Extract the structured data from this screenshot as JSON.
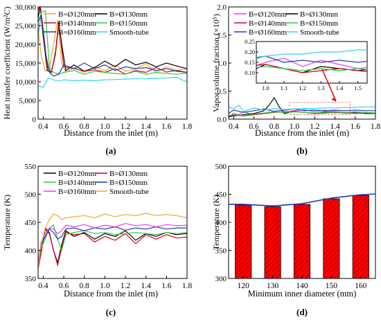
{
  "chart_data": [
    {
      "panel_label": "(a)",
      "type": "line",
      "xlabel": "Distance from the inlet (m)",
      "ylabel": "Heat transfer coefficient (W/m²C)",
      "xlim": [
        0.35,
        1.8
      ],
      "ylim": [
        0,
        30000
      ],
      "xticks": [
        "0.4",
        "0.6",
        "0.8",
        "1.0",
        "1.2",
        "1.4",
        "1.6",
        "1.8"
      ],
      "yticks": [
        "0",
        "5,000",
        "10,000",
        "15,000",
        "20,000",
        "25,000",
        "30,000"
      ],
      "legend_position": "top",
      "series": [
        {
          "name": "B=Ø120mm",
          "color": "#f5a623",
          "x": [
            0.35,
            0.38,
            0.42,
            0.46,
            0.5,
            0.54,
            0.58,
            0.62,
            0.7,
            0.8,
            0.9,
            1.0,
            1.1,
            1.2,
            1.3,
            1.4,
            1.5,
            1.6,
            1.7,
            1.8
          ],
          "y": [
            24000,
            17000,
            12800,
            13500,
            20000,
            26500,
            15000,
            12500,
            13800,
            12500,
            14000,
            13000,
            14500,
            12800,
            13500,
            14800,
            12500,
            14000,
            13000,
            13500
          ]
        },
        {
          "name": "B=Ø130mm",
          "color": "#000000",
          "x": [
            0.35,
            0.37,
            0.4,
            0.44,
            0.48,
            0.52,
            0.55,
            0.58,
            0.62,
            0.7,
            0.8,
            0.9,
            1.0,
            1.1,
            1.2,
            1.3,
            1.4,
            1.5,
            1.6,
            1.7,
            1.8
          ],
          "y": [
            27000,
            30000,
            22000,
            13000,
            12500,
            18000,
            26000,
            20000,
            13000,
            14500,
            12800,
            13800,
            15500,
            14000,
            16000,
            14500,
            15200,
            14000,
            15000,
            14200,
            13500
          ]
        },
        {
          "name": "B=Ø140mm",
          "color": "#d0021b",
          "x": [
            0.35,
            0.37,
            0.4,
            0.44,
            0.48,
            0.52,
            0.55,
            0.6,
            0.7,
            0.8,
            0.9,
            1.0,
            1.1,
            1.2,
            1.3,
            1.4,
            1.5,
            1.6,
            1.7,
            1.8
          ],
          "y": [
            29000,
            30500,
            24000,
            14000,
            12500,
            17500,
            25500,
            14000,
            13500,
            12800,
            13200,
            12500,
            13500,
            12000,
            13000,
            12500,
            13800,
            12600,
            13000,
            12500
          ]
        },
        {
          "name": "B=Ø150mm",
          "color": "#2ecc40",
          "x": [
            0.35,
            0.38,
            0.42,
            0.46,
            0.5,
            0.55,
            0.6,
            0.7,
            0.8,
            0.9,
            1.0,
            1.1,
            1.2,
            1.3,
            1.4,
            1.5,
            1.6,
            1.7,
            1.8
          ],
          "y": [
            22000,
            28500,
            29000,
            14000,
            12500,
            12000,
            12500,
            13000,
            12000,
            12800,
            12500,
            12200,
            12000,
            12800,
            12000,
            12500,
            12200,
            12000,
            12300
          ]
        },
        {
          "name": "B=Ø160mm",
          "color": "#1f3bb3",
          "x": [
            0.35,
            0.38,
            0.42,
            0.46,
            0.5,
            0.55,
            0.6,
            0.7,
            0.8,
            0.9,
            1.0,
            1.1,
            1.2,
            1.3,
            1.4,
            1.5,
            1.6,
            1.7,
            1.8
          ],
          "y": [
            26000,
            28000,
            18000,
            12500,
            11500,
            12000,
            14500,
            13500,
            15000,
            13500,
            14500,
            13000,
            14000,
            13500,
            13800,
            13000,
            13500,
            12800,
            12500
          ]
        },
        {
          "name": "Smooth-tube",
          "color": "#33d6e6",
          "x": [
            0.35,
            0.4,
            0.45,
            0.5,
            0.55,
            0.6,
            0.7,
            0.8,
            0.9,
            1.0,
            1.1,
            1.2,
            1.3,
            1.4,
            1.5,
            1.6,
            1.7,
            1.75,
            1.8
          ],
          "y": [
            8800,
            8500,
            11000,
            10500,
            10200,
            10500,
            10300,
            10400,
            10300,
            10500,
            10600,
            10700,
            10800,
            10800,
            10900,
            11000,
            11200,
            10500,
            10000
          ]
        }
      ]
    },
    {
      "panel_label": "(b)",
      "type": "line",
      "xlabel": "Distance from the inlet (m)",
      "ylabel": "Vapor volume fraction (×10⁵)",
      "xlim": [
        0.35,
        1.8
      ],
      "ylim": [
        0,
        2.0
      ],
      "xticks": [
        "0.4",
        "0.6",
        "0.8",
        "1.0",
        "1.2",
        "1.4",
        "1.6",
        "1.8"
      ],
      "yticks": [
        "0.0",
        "0.5",
        "1.0",
        "1.5",
        "2.0"
      ],
      "legend_position": "top",
      "inset": {
        "xlim": [
          0.95,
          1.55
        ],
        "ylim": [
          0.05,
          0.25
        ],
        "xticks": [
          "1.0",
          "1.1",
          "1.2",
          "1.3",
          "1.4",
          "1.5"
        ],
        "yticks": [
          "0.10",
          "0.15",
          "0.20",
          "0.25"
        ]
      },
      "series": [
        {
          "name": "B=Ø120mm",
          "color": "#e040fb",
          "x": [
            0.35,
            0.4,
            0.45,
            0.5,
            0.55,
            0.6,
            0.7,
            0.8,
            0.9,
            1.0,
            1.1,
            1.2,
            1.3,
            1.4,
            1.5,
            1.6,
            1.7,
            1.8
          ],
          "y": [
            0.05,
            0.1,
            0.08,
            0.14,
            0.1,
            0.08,
            0.1,
            0.13,
            0.12,
            0.15,
            0.17,
            0.13,
            0.16,
            0.14,
            0.12,
            0.13,
            0.12,
            0.11
          ]
        },
        {
          "name": "B=Ø130mm",
          "color": "#000000",
          "x": [
            0.35,
            0.4,
            0.5,
            0.6,
            0.7,
            0.75,
            0.8,
            0.85,
            0.9,
            1.0,
            1.1,
            1.2,
            1.3,
            1.4,
            1.5,
            1.6,
            1.7,
            1.8
          ],
          "y": [
            0.04,
            0.06,
            0.08,
            0.1,
            0.15,
            0.25,
            0.38,
            0.22,
            0.1,
            0.14,
            0.12,
            0.1,
            0.13,
            0.12,
            0.11,
            0.12,
            0.1,
            0.1
          ]
        },
        {
          "name": "B=Ø140mm",
          "color": "#d0021b",
          "x": [
            0.35,
            0.4,
            0.5,
            0.6,
            0.7,
            0.8,
            0.9,
            1.0,
            1.1,
            1.2,
            1.3,
            1.4,
            1.5,
            1.6,
            1.7,
            1.8
          ],
          "y": [
            0.05,
            0.07,
            0.06,
            0.08,
            0.1,
            0.12,
            0.13,
            0.14,
            0.12,
            0.1,
            0.11,
            0.12,
            0.11,
            0.1,
            0.11,
            0.1
          ]
        },
        {
          "name": "B=Ø150mm",
          "color": "#2ecc40",
          "x": [
            0.35,
            0.4,
            0.5,
            0.6,
            0.7,
            0.8,
            0.9,
            1.0,
            1.1,
            1.2,
            1.3,
            1.4,
            1.5,
            1.6,
            1.7,
            1.8
          ],
          "y": [
            0.06,
            0.08,
            0.07,
            0.09,
            0.11,
            0.13,
            0.12,
            0.13,
            0.12,
            0.11,
            0.12,
            0.11,
            0.12,
            0.11,
            0.12,
            0.11
          ]
        },
        {
          "name": "B=Ø160mm",
          "color": "#1f3bb3",
          "x": [
            0.35,
            0.4,
            0.5,
            0.6,
            0.7,
            0.8,
            0.9,
            1.0,
            1.1,
            1.2,
            1.3,
            1.4,
            1.5,
            1.6,
            1.7,
            1.8
          ],
          "y": [
            0.1,
            0.16,
            0.12,
            0.15,
            0.18,
            0.14,
            0.16,
            0.18,
            0.15,
            0.16,
            0.15,
            0.16,
            0.15,
            0.16,
            0.15,
            0.15
          ]
        },
        {
          "name": "Smooth-tube",
          "color": "#33d6e6",
          "x": [
            0.35,
            0.4,
            0.45,
            0.5,
            0.6,
            0.7,
            0.8,
            0.9,
            1.0,
            1.1,
            1.2,
            1.3,
            1.4,
            1.5,
            1.6,
            1.7,
            1.8
          ],
          "y": [
            0.22,
            0.18,
            0.25,
            0.14,
            0.2,
            0.16,
            0.19,
            0.17,
            0.18,
            0.19,
            0.19,
            0.2,
            0.2,
            0.21,
            0.21,
            0.22,
            0.22
          ]
        }
      ]
    },
    {
      "panel_label": "(c)",
      "type": "line",
      "xlabel": "Distance from the inlet (m)",
      "ylabel": "Temperature (K)",
      "xlim": [
        0.35,
        1.8
      ],
      "ylim": [
        350,
        550
      ],
      "xticks": [
        "0.4",
        "0.6",
        "0.8",
        "1.0",
        "1.2",
        "1.4",
        "1.6",
        "1.8"
      ],
      "yticks": [
        "350",
        "400",
        "450",
        "500",
        "550"
      ],
      "legend_position": "top",
      "series": [
        {
          "name": "B=Ø120mm",
          "color": "#000000",
          "x": [
            0.35,
            0.38,
            0.42,
            0.46,
            0.5,
            0.54,
            0.58,
            0.62,
            0.7,
            0.8,
            0.9,
            1.0,
            1.1,
            1.2,
            1.3,
            1.4,
            1.5,
            1.6,
            1.7,
            1.8
          ],
          "y": [
            370,
            400,
            438,
            430,
            400,
            378,
            410,
            435,
            425,
            432,
            420,
            430,
            425,
            435,
            418,
            430,
            425,
            432,
            428,
            430
          ]
        },
        {
          "name": "B=Ø130mm",
          "color": "#d0021b",
          "x": [
            0.35,
            0.38,
            0.42,
            0.46,
            0.5,
            0.54,
            0.58,
            0.62,
            0.7,
            0.8,
            0.9,
            1.0,
            1.1,
            1.2,
            1.3,
            1.4,
            1.5,
            1.6,
            1.7,
            1.8
          ],
          "y": [
            368,
            395,
            440,
            432,
            400,
            374,
            405,
            432,
            428,
            430,
            415,
            425,
            418,
            430,
            412,
            428,
            420,
            428,
            422,
            424
          ]
        },
        {
          "name": "B=Ø140mm",
          "color": "#2ecc40",
          "x": [
            0.35,
            0.38,
            0.42,
            0.46,
            0.5,
            0.54,
            0.58,
            0.62,
            0.7,
            0.8,
            0.9,
            1.0,
            1.1,
            1.2,
            1.3,
            1.4,
            1.5,
            1.6,
            1.7,
            1.8
          ],
          "y": [
            372,
            405,
            420,
            440,
            445,
            420,
            400,
            428,
            432,
            435,
            430,
            432,
            428,
            430,
            432,
            430,
            428,
            432,
            430,
            432
          ]
        },
        {
          "name": "B=Ø150mm",
          "color": "#1f3bb3",
          "x": [
            0.35,
            0.38,
            0.42,
            0.46,
            0.5,
            0.54,
            0.58,
            0.62,
            0.7,
            0.8,
            0.9,
            1.0,
            1.1,
            1.2,
            1.3,
            1.4,
            1.5,
            1.6,
            1.7,
            1.8
          ],
          "y": [
            375,
            410,
            425,
            438,
            432,
            420,
            425,
            438,
            440,
            435,
            440,
            438,
            442,
            436,
            440,
            438,
            442,
            438,
            440,
            440
          ]
        },
        {
          "name": "B=Ø160mm",
          "color": "#e040fb",
          "x": [
            0.35,
            0.38,
            0.42,
            0.46,
            0.5,
            0.54,
            0.58,
            0.62,
            0.7,
            0.8,
            0.9,
            1.0,
            1.1,
            1.2,
            1.3,
            1.4,
            1.5,
            1.6,
            1.7,
            1.8
          ],
          "y": [
            378,
            415,
            430,
            440,
            438,
            430,
            435,
            445,
            442,
            446,
            440,
            445,
            442,
            448,
            444,
            446,
            442,
            446,
            444,
            445
          ]
        },
        {
          "name": "Smooth-tube",
          "color": "#f5a623",
          "x": [
            0.35,
            0.38,
            0.42,
            0.46,
            0.5,
            0.54,
            0.58,
            0.62,
            0.7,
            0.8,
            0.9,
            1.0,
            1.1,
            1.2,
            1.3,
            1.4,
            1.5,
            1.6,
            1.7,
            1.8
          ],
          "y": [
            372,
            410,
            440,
            455,
            465,
            462,
            455,
            458,
            460,
            462,
            458,
            465,
            460,
            464,
            462,
            466,
            462,
            464,
            462,
            458
          ]
        }
      ]
    },
    {
      "panel_label": "(d)",
      "type": "bar",
      "xlabel": "Minimum inner diameter (mm)",
      "ylabel": "Temperature (K)",
      "ylim": [
        300,
        500
      ],
      "yticks": [
        "300",
        "350",
        "400",
        "450",
        "500"
      ],
      "categories": [
        "120",
        "130",
        "140",
        "150",
        "160"
      ],
      "values": [
        431,
        428,
        432,
        442,
        448
      ],
      "bar_color": "#ff0000",
      "hatch": "diagonal",
      "trend_line_color": "#1f3bb3"
    }
  ]
}
